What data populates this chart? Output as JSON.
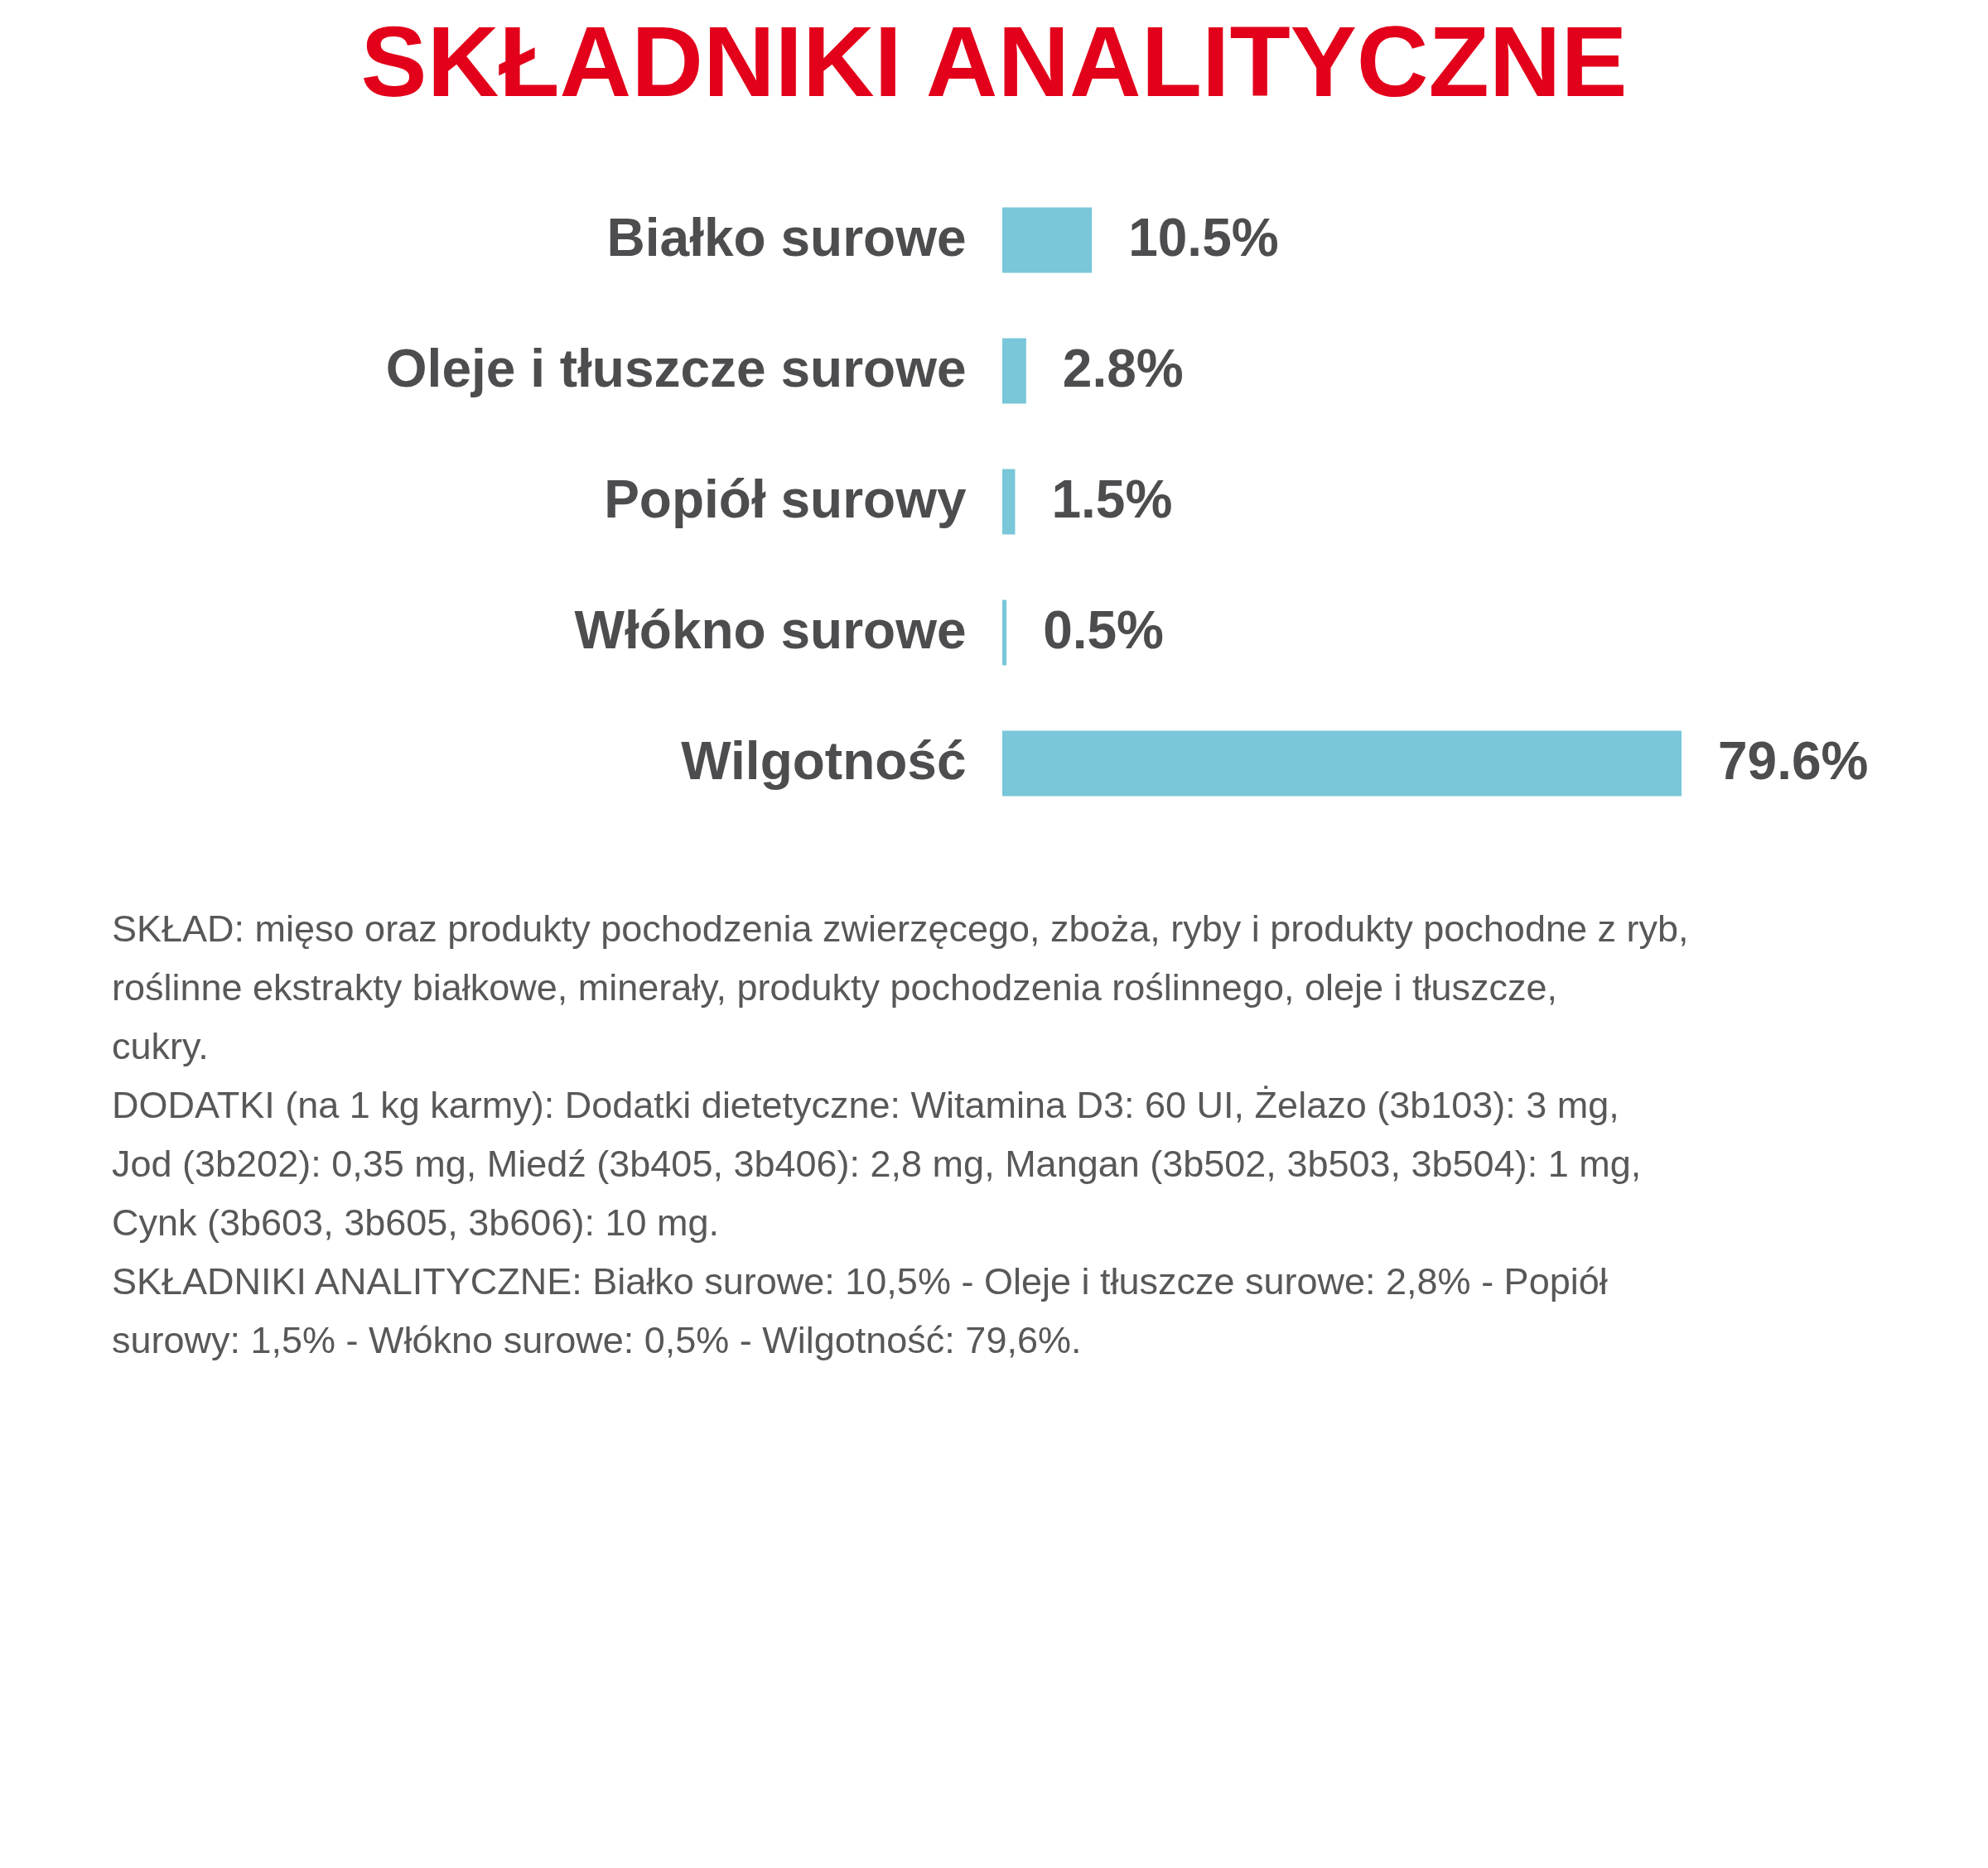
{
  "chart_data": {
    "type": "bar",
    "orientation": "horizontal",
    "title": "SKŁADNIKI ANALITYCZNE",
    "categories": [
      "Białko surowe",
      "Oleje i tłuszcze surowe",
      "Popiół surowy",
      "Włókno surowe",
      "Wilgotność"
    ],
    "values": [
      10.5,
      2.8,
      1.5,
      0.5,
      79.6
    ],
    "value_labels": [
      "10.5%",
      "2.8%",
      "1.5%",
      "0.5%",
      "79.6%"
    ],
    "color": "#79c7d9",
    "annotations": [
      "SKŁAD: mięso oraz produkty pochodzenia zwierzęcego, zboża, ryby i produkty pochodne z ryb, roślinne ekstrakty białkowe, minerały, produkty pochodzenia roślinnego, oleje i tłuszcze, cukry.",
      "DODATKI (na 1 kg karmy): Dodatki dietetyczne: Witamina D3: 60 UI, Żelazo (3b103): 3 mg, Jod (3b202): 0,35 mg, Miedź (3b405, 3b406): 2,8 mg, Mangan (3b502, 3b503, 3b504): 1 mg, Cynk (3b603, 3b605, 3b606): 10 mg.",
      "SKŁADNIKI ANALITYCZNE: Białko surowe: 10,5% - Oleje i tłuszcze surowe: 2,8% - Popiół surowy: 1,5% - Włókno surowe: 0,5% - Wilgotność: 79,6%."
    ]
  }
}
